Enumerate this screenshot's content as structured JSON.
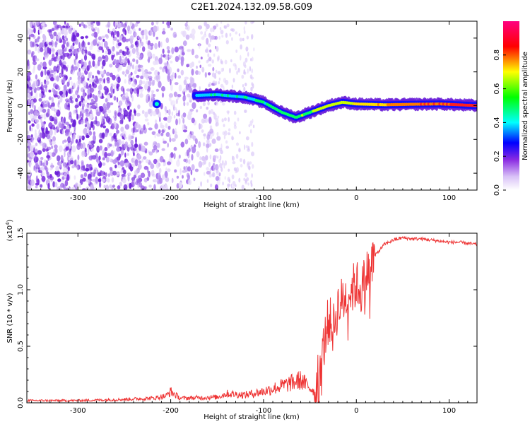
{
  "title": "C2E1.2024.132.09.58.G09",
  "colors": {
    "line": "#ee3333",
    "spectrogram_scale": [
      "#ffffff",
      "#d9c2f7",
      "#8a2be2",
      "#0000ff",
      "#00ffff",
      "#00ff00",
      "#ffff00",
      "#ff0000",
      "#ff0080"
    ]
  },
  "chart_data": [
    {
      "type": "heatmap",
      "title": "C2E1.2024.132.09.58.G09",
      "xlabel": "Height of straight line (km)",
      "ylabel": "Frequency (Hz)",
      "xlim": [
        -355,
        130
      ],
      "ylim": [
        -50,
        50
      ],
      "x_ticks": [
        -300,
        -200,
        -100,
        0,
        100
      ],
      "y_ticks": [
        -40,
        -20,
        0,
        20,
        40
      ],
      "colorbar": {
        "label": "Normalized spectral amplitude",
        "range": [
          0,
          1
        ],
        "ticks": [
          "0.0",
          "0.2",
          "0.4",
          "0.6",
          "0.8"
        ]
      },
      "ridge": {
        "description_points_x": [
          -175,
          -150,
          -120,
          -100,
          -80,
          -65,
          -55,
          -45,
          -30,
          -15,
          0,
          30,
          60,
          90,
          130
        ],
        "frequency_hz": [
          6,
          6.5,
          5,
          2,
          -4,
          -7,
          -5,
          -3,
          0,
          2,
          1,
          0.5,
          0.8,
          1,
          0
        ],
        "amplitude": [
          0.35,
          0.4,
          0.4,
          0.45,
          0.5,
          0.5,
          0.55,
          0.6,
          0.6,
          0.65,
          0.75,
          0.8,
          0.85,
          0.9,
          0.95
        ]
      }
    },
    {
      "type": "line",
      "xlabel": "Height of straight line (km)",
      "ylabel": "SNR (10 * v/v)",
      "y_multiplier": "(x10",
      "y_multiplier_exp": "4",
      "y_multiplier_close": ")",
      "xlim": [
        -355,
        130
      ],
      "ylim": [
        0,
        1.5
      ],
      "x_ticks": [
        -300,
        -200,
        -100,
        0,
        100
      ],
      "y_ticks": [
        "0.0",
        "0.5",
        "1.0",
        "1.5"
      ],
      "series": [
        {
          "x": [
            -355,
            -300,
            -250,
            -220,
            -205,
            -200,
            -190,
            -150,
            -140,
            -120,
            -100,
            -80,
            -60,
            -45,
            -40,
            -35,
            -30,
            -25,
            -20,
            -15,
            -10,
            -5,
            0,
            5,
            10,
            15,
            20,
            25,
            30,
            40,
            50,
            60,
            70,
            80,
            90,
            100,
            110,
            120,
            130
          ],
          "y": [
            0.02,
            0.02,
            0.03,
            0.04,
            0.06,
            0.1,
            0.04,
            0.05,
            0.08,
            0.07,
            0.1,
            0.15,
            0.2,
            0.1,
            0.3,
            0.5,
            0.75,
            0.65,
            0.85,
            0.9,
            0.95,
            1.0,
            1.05,
            1.0,
            1.1,
            1.25,
            1.3,
            1.35,
            1.4,
            1.44,
            1.46,
            1.45,
            1.45,
            1.44,
            1.43,
            1.42,
            1.42,
            1.41,
            1.4
          ]
        }
      ]
    }
  ]
}
